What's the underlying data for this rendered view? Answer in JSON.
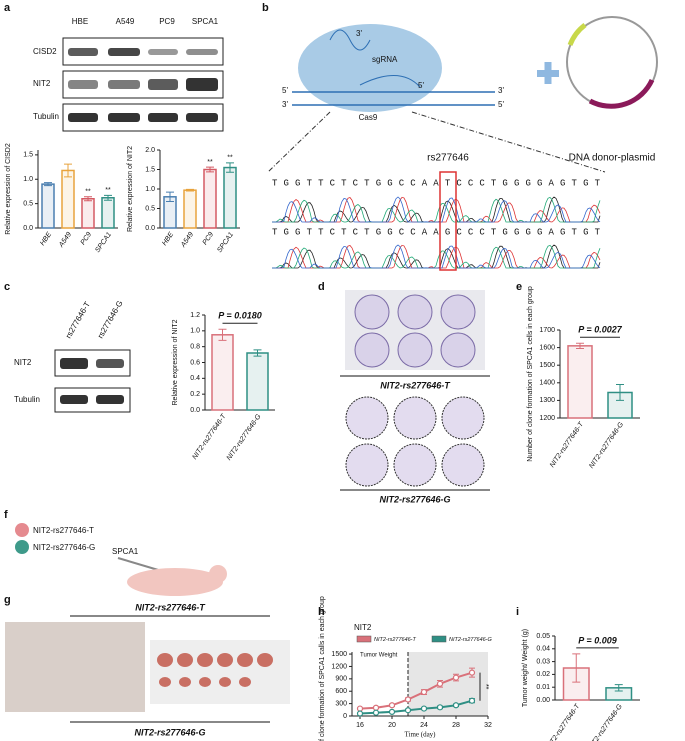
{
  "figure": {
    "panel_letters": [
      "a",
      "b",
      "c",
      "d",
      "e",
      "f",
      "g",
      "h",
      "i"
    ],
    "a": {
      "lanes": [
        "HBE",
        "A549",
        "PC9",
        "SPCA1"
      ],
      "rows": [
        "CISD2",
        "NIT2",
        "Tubulin"
      ]
    },
    "b": {
      "guide": "sgRNA",
      "enzyme": "Cas9",
      "ends": [
        "3'",
        "5'"
      ],
      "snp": "rs277646",
      "sequence_t": "TGGTTCTCTGGCCAATCCCTGGGGAGTGT",
      "sequence_g": "TGGTTCTCTGGCCAAGCCCTGGGGAGTGT",
      "donor": "DNA donor-plasmid"
    },
    "c": {
      "lanes": [
        "rs277646-T",
        "rs277646-G"
      ],
      "rows": [
        "NIT2",
        "Tubulin"
      ]
    },
    "d": {
      "groups": [
        "NIT2-rs277646-T",
        "NIT2-rs277646-G"
      ]
    },
    "f": {
      "groups": [
        "NIT2-rs277646-T",
        "NIT2-rs277646-G"
      ],
      "cell_line": "SPCA1"
    },
    "g": {
      "groups": [
        "NIT2-rs277646-T",
        "NIT2-rs277646-G"
      ]
    }
  },
  "chart_data": [
    {
      "type": "bar",
      "ylabel": "Relative expression of CISD2",
      "categories": [
        "HBE",
        "A549",
        "PC9",
        "SPCA1"
      ],
      "values": [
        0.9,
        1.18,
        0.6,
        0.62
      ],
      "errors": [
        0.03,
        0.13,
        0.04,
        0.05
      ],
      "annotations": [
        null,
        null,
        "**",
        "**"
      ],
      "colors": [
        "#4a7fb0",
        "#e8a33d",
        "#d45a63",
        "#2f8f84"
      ],
      "ylim": [
        0,
        1.6
      ],
      "yticks": [
        {
          "value": 0,
          "label": "0.0"
        },
        0.5,
        {
          "value": 1,
          "label": "1.0"
        },
        1.5
      ]
    },
    {
      "type": "bar",
      "ylabel": "Relative expression of NIT2",
      "categories": [
        "HBE",
        "A549",
        "PC9",
        "SPCA1"
      ],
      "values": [
        0.8,
        0.97,
        1.5,
        1.55
      ],
      "errors": [
        0.12,
        0.02,
        0.06,
        0.12
      ],
      "annotations": [
        null,
        null,
        "**",
        "**"
      ],
      "colors": [
        "#4a7fb0",
        "#e8a33d",
        "#d45a63",
        "#2f8f84"
      ],
      "ylim": [
        0,
        2.0
      ],
      "yticks": [
        {
          "value": 0,
          "label": "0.0"
        },
        0.5,
        {
          "value": 1,
          "label": "1.0"
        },
        1.5,
        {
          "value": 2,
          "label": "2.0"
        }
      ]
    },
    {
      "type": "bar",
      "ylabel": "Relative expression of NIT2",
      "categories": [
        "NIT2-rs277646-T",
        "NIT2-rs277646-G"
      ],
      "values": [
        0.95,
        0.72
      ],
      "errors": [
        0.07,
        0.04
      ],
      "colors": [
        "#d9717a",
        "#2f8f84"
      ],
      "comparison": "P = 0.0180",
      "ylim": [
        0,
        1.2
      ],
      "yticks": [
        {
          "value": 0,
          "label": "0.0"
        },
        0.2,
        0.4,
        0.6,
        0.8,
        {
          "value": 1,
          "label": "1.0"
        },
        1.2
      ]
    },
    {
      "type": "bar",
      "ylabel": "Number of clone formation of SPCA1 cells in each group",
      "categories": [
        "NIT2-rs277646-T",
        "NIT2-rs277646-G"
      ],
      "values": [
        1610,
        1345
      ],
      "errors": [
        15,
        45
      ],
      "colors": [
        "#d9717a",
        "#2f8f84"
      ],
      "comparison": "P = 0.0027",
      "ylim": [
        1200,
        1700
      ],
      "yticks": [
        1200,
        1300,
        1400,
        1500,
        1600,
        1700
      ]
    },
    {
      "type": "line",
      "title": "NIT2",
      "xlabel": "Time (day)",
      "ylabel": "Number of clone formation of SPCA1 calls in each group",
      "x": [
        16,
        18,
        20,
        22,
        24,
        26,
        28,
        30
      ],
      "series": [
        {
          "name": "NIT2-rs277646-T",
          "color": "#d9717a",
          "values": [
            180,
            200,
            260,
            400,
            580,
            780,
            930,
            1050
          ],
          "errors": [
            15,
            20,
            30,
            40,
            60,
            80,
            80,
            110
          ]
        },
        {
          "name": "NIT2-rs277646-G",
          "color": "#2f8f84",
          "values": [
            60,
            80,
            100,
            140,
            180,
            210,
            260,
            370
          ],
          "errors": [
            10,
            10,
            10,
            20,
            20,
            30,
            30,
            50
          ]
        }
      ],
      "xlim": [
        15,
        32
      ],
      "xticks": [
        16,
        20,
        24,
        28,
        32
      ],
      "ylim": [
        0,
        1550
      ],
      "yticks": [
        0,
        300,
        600,
        900,
        1200,
        1500
      ],
      "marker_x": 22,
      "annotation": "**",
      "inset_title": "Tumor Weight"
    },
    {
      "type": "bar",
      "ylabel": "Tumor weight/ Weight (g)",
      "categories": [
        "NIT2-rs277646-T",
        "NIT2-rs277646-G"
      ],
      "values": [
        0.025,
        0.0095
      ],
      "errors": [
        0.011,
        0.0025
      ],
      "colors": [
        "#d9717a",
        "#2f8f84"
      ],
      "comparison": "P = 0.009",
      "ylim": [
        0,
        0.05
      ],
      "yticks": [
        {
          "value": 0,
          "label": "0.00"
        },
        0.01,
        0.02,
        0.03,
        0.04,
        {
          "value": 0.05,
          "label": "0.05"
        }
      ]
    }
  ]
}
